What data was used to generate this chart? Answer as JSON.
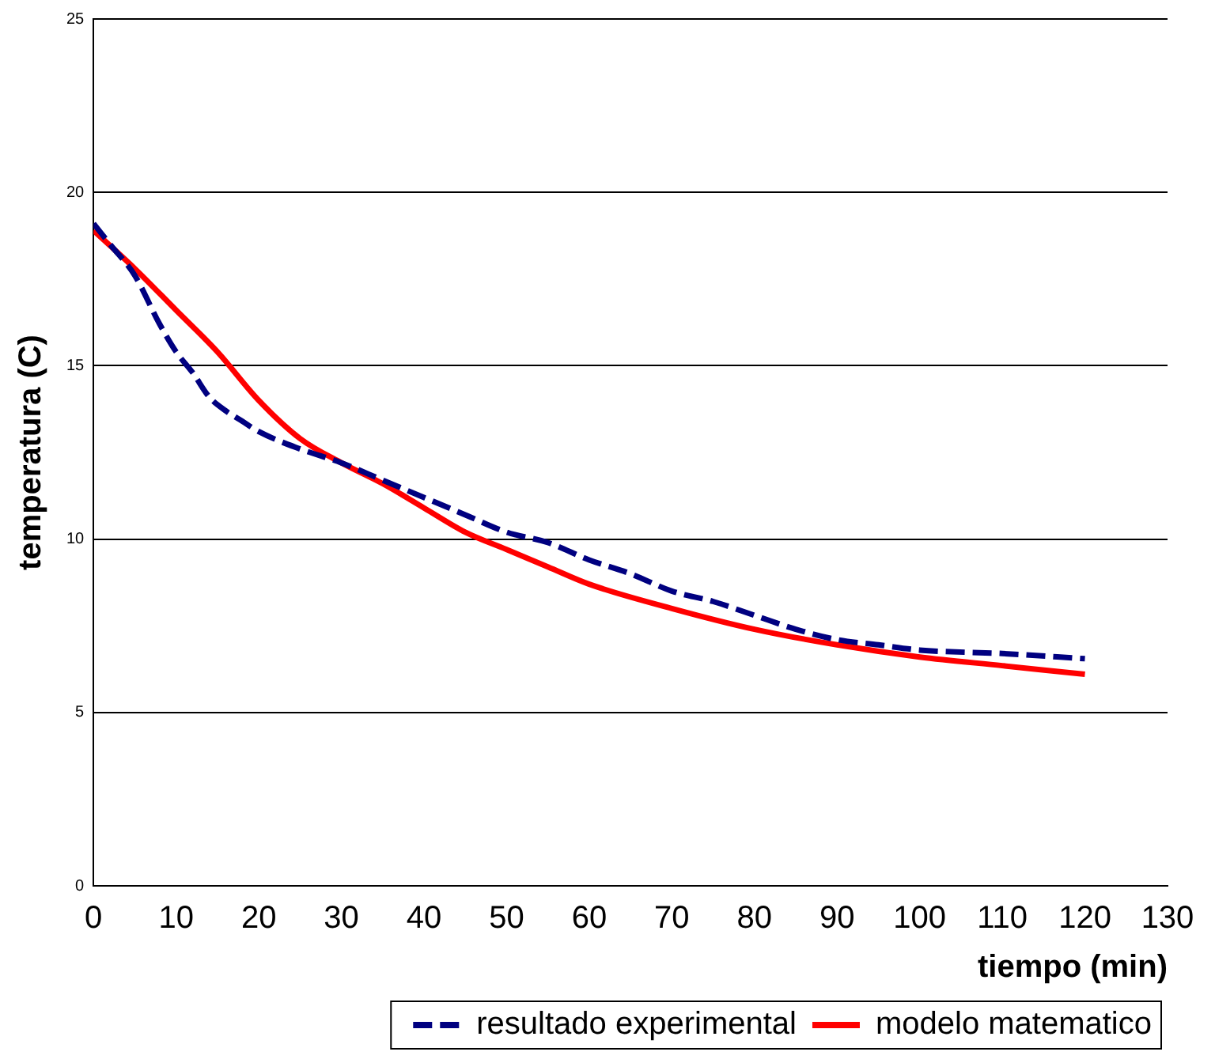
{
  "chart_data": {
    "type": "line",
    "xlabel": "tiempo (min)",
    "ylabel": "temperatura (C)",
    "xlim": [
      0,
      130
    ],
    "xticks": [
      0,
      10,
      20,
      30,
      40,
      50,
      60,
      70,
      80,
      90,
      100,
      110,
      120,
      130
    ],
    "ylim": [
      0,
      25
    ],
    "yticks": [
      0,
      5,
      10,
      15,
      20,
      25
    ],
    "grid": "y",
    "legend": "bottom",
    "marker": "none",
    "series": [
      {
        "name": "resultado experimental",
        "color": "#000080",
        "line_style": "dashed",
        "x": [
          0,
          2,
          5,
          8,
          10,
          12,
          14,
          16,
          18,
          20,
          25,
          30,
          35,
          40,
          45,
          50,
          55,
          60,
          65,
          70,
          75,
          80,
          85,
          90,
          95,
          100,
          110,
          120
        ],
        "values": [
          19.1,
          18.5,
          17.6,
          16.2,
          15.4,
          14.8,
          14.1,
          13.7,
          13.4,
          13.1,
          12.6,
          12.2,
          11.7,
          11.2,
          10.7,
          10.2,
          9.9,
          9.4,
          9.0,
          8.5,
          8.2,
          7.8,
          7.4,
          7.1,
          6.95,
          6.8,
          6.7,
          6.55
        ]
      },
      {
        "name": "modelo matematico",
        "color": "#ff0000",
        "line_style": "solid",
        "x": [
          0,
          5,
          10,
          15,
          20,
          25,
          30,
          35,
          40,
          45,
          50,
          55,
          60,
          70,
          80,
          90,
          100,
          110,
          120
        ],
        "values": [
          18.9,
          17.8,
          16.6,
          15.4,
          14.0,
          12.9,
          12.2,
          11.6,
          10.9,
          10.2,
          9.7,
          9.2,
          8.7,
          8.0,
          7.4,
          6.95,
          6.6,
          6.35,
          6.1
        ]
      }
    ]
  }
}
